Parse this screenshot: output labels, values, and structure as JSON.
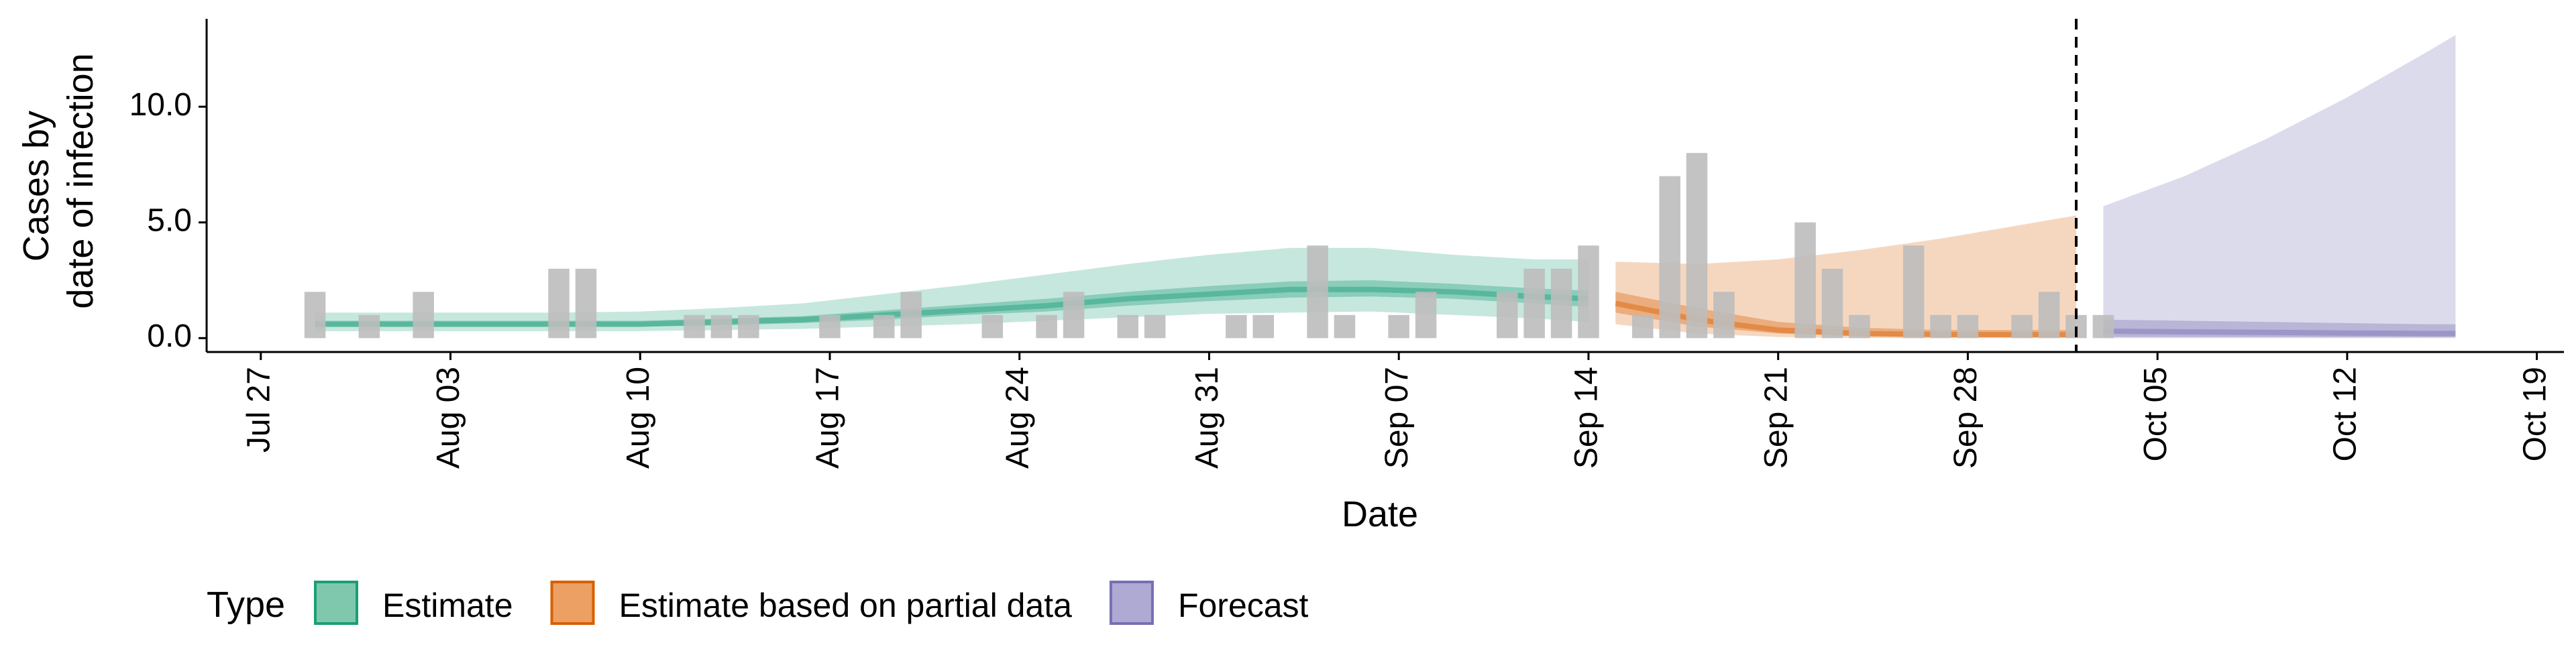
{
  "chart_data": {
    "type": "area",
    "title": "",
    "xlabel": "Date",
    "ylabel": [
      "Cases by",
      "date of infection"
    ],
    "x_tick_labels": [
      "Jul 27",
      "Aug 03",
      "Aug 10",
      "Aug 17",
      "Aug 24",
      "Aug 31",
      "Sep 07",
      "Sep 14",
      "Sep 21",
      "Sep 28",
      "Oct 05",
      "Oct 12",
      "Oct 19"
    ],
    "x_ticks": [
      "2020-07-27",
      "2020-08-03",
      "2020-08-10",
      "2020-08-17",
      "2020-08-24",
      "2020-08-31",
      "2020-09-07",
      "2020-09-14",
      "2020-09-21",
      "2020-09-28",
      "2020-10-05",
      "2020-10-12",
      "2020-10-19"
    ],
    "y_tick_labels": [
      "0.0",
      "5.0",
      "10.0"
    ],
    "y_ticks": [
      0,
      5,
      10
    ],
    "xlim": [
      "2020-07-25",
      "2020-10-20"
    ],
    "ylim": [
      -0.6,
      13.8
    ],
    "forecast_start_marker": "2020-10-02",
    "grid": false,
    "legend": {
      "title": "Type",
      "position": "bottom-left",
      "entries": [
        {
          "label": "Estimate",
          "fill": "#7fc8ad",
          "stroke": "#1b9e77"
        },
        {
          "label": "Estimate based on partial data",
          "fill": "#eca063",
          "stroke": "#d95f02"
        },
        {
          "label": "Forecast",
          "fill": "#aeaad3",
          "stroke": "#7570b3"
        }
      ]
    },
    "colors": {
      "bars": "#bdbdbd",
      "estimate": "#1b9e77",
      "partial": "#d95f02",
      "forecast": "#7570b3"
    },
    "reported_cases": [
      {
        "date": "2020-07-29",
        "value": 2
      },
      {
        "date": "2020-07-31",
        "value": 1
      },
      {
        "date": "2020-08-02",
        "value": 2
      },
      {
        "date": "2020-08-07",
        "value": 3
      },
      {
        "date": "2020-08-08",
        "value": 3
      },
      {
        "date": "2020-08-12",
        "value": 1
      },
      {
        "date": "2020-08-13",
        "value": 1
      },
      {
        "date": "2020-08-14",
        "value": 1
      },
      {
        "date": "2020-08-17",
        "value": 1
      },
      {
        "date": "2020-08-19",
        "value": 1
      },
      {
        "date": "2020-08-20",
        "value": 2
      },
      {
        "date": "2020-08-23",
        "value": 1
      },
      {
        "date": "2020-08-25",
        "value": 1
      },
      {
        "date": "2020-08-26",
        "value": 2
      },
      {
        "date": "2020-08-28",
        "value": 1
      },
      {
        "date": "2020-08-29",
        "value": 1
      },
      {
        "date": "2020-09-01",
        "value": 1
      },
      {
        "date": "2020-09-02",
        "value": 1
      },
      {
        "date": "2020-09-04",
        "value": 4
      },
      {
        "date": "2020-09-05",
        "value": 1
      },
      {
        "date": "2020-09-07",
        "value": 1
      },
      {
        "date": "2020-09-08",
        "value": 2
      },
      {
        "date": "2020-09-11",
        "value": 2
      },
      {
        "date": "2020-09-12",
        "value": 3
      },
      {
        "date": "2020-09-13",
        "value": 3
      },
      {
        "date": "2020-09-14",
        "value": 4
      },
      {
        "date": "2020-09-16",
        "value": 1
      },
      {
        "date": "2020-09-17",
        "value": 7
      },
      {
        "date": "2020-09-18",
        "value": 8
      },
      {
        "date": "2020-09-19",
        "value": 2
      },
      {
        "date": "2020-09-22",
        "value": 5
      },
      {
        "date": "2020-09-23",
        "value": 3
      },
      {
        "date": "2020-09-24",
        "value": 1
      },
      {
        "date": "2020-09-26",
        "value": 4
      },
      {
        "date": "2020-09-27",
        "value": 1
      },
      {
        "date": "2020-09-28",
        "value": 1
      },
      {
        "date": "2020-09-30",
        "value": 1
      },
      {
        "date": "2020-10-01",
        "value": 2
      },
      {
        "date": "2020-10-02",
        "value": 1
      },
      {
        "date": "2020-10-03",
        "value": 1
      }
    ],
    "series": [
      {
        "type": "Estimate",
        "x": [
          "2020-07-29",
          "2020-08-01",
          "2020-08-04",
          "2020-08-07",
          "2020-08-10",
          "2020-08-13",
          "2020-08-16",
          "2020-08-19",
          "2020-08-22",
          "2020-08-25",
          "2020-08-28",
          "2020-08-31",
          "2020-09-03",
          "2020-09-06",
          "2020-09-09",
          "2020-09-12",
          "2020-09-14"
        ],
        "median": [
          0.6,
          0.6,
          0.6,
          0.6,
          0.6,
          0.7,
          0.8,
          1.0,
          1.2,
          1.4,
          1.7,
          1.9,
          2.1,
          2.1,
          2.0,
          1.8,
          1.7
        ],
        "lower_50": [
          0.5,
          0.5,
          0.5,
          0.5,
          0.5,
          0.55,
          0.65,
          0.8,
          1.0,
          1.15,
          1.4,
          1.6,
          1.75,
          1.8,
          1.7,
          1.5,
          1.35
        ],
        "upper_50": [
          0.75,
          0.75,
          0.75,
          0.75,
          0.75,
          0.85,
          0.95,
          1.2,
          1.45,
          1.7,
          2.0,
          2.25,
          2.45,
          2.5,
          2.35,
          2.15,
          2.05
        ],
        "lower_90": [
          0.3,
          0.3,
          0.3,
          0.3,
          0.3,
          0.35,
          0.4,
          0.5,
          0.6,
          0.75,
          0.9,
          1.05,
          1.1,
          1.15,
          1.0,
          0.85,
          0.7
        ],
        "upper_90": [
          1.1,
          1.1,
          1.1,
          1.1,
          1.15,
          1.3,
          1.5,
          1.9,
          2.3,
          2.75,
          3.2,
          3.6,
          3.9,
          3.9,
          3.6,
          3.4,
          3.4
        ]
      },
      {
        "type": "Estimate based on partial data",
        "x": [
          "2020-09-15",
          "2020-09-18",
          "2020-09-21",
          "2020-09-24",
          "2020-09-27",
          "2020-09-30",
          "2020-10-02"
        ],
        "median": [
          1.5,
          0.8,
          0.35,
          0.2,
          0.15,
          0.15,
          0.15
        ],
        "lower_50": [
          1.1,
          0.5,
          0.2,
          0.08,
          0.05,
          0.04,
          0.04
        ],
        "upper_50": [
          2.0,
          1.3,
          0.7,
          0.45,
          0.35,
          0.35,
          0.35
        ],
        "lower_90": [
          0.6,
          0.2,
          0.05,
          0.0,
          0.0,
          0.0,
          0.0
        ],
        "upper_90": [
          3.3,
          3.2,
          3.4,
          3.8,
          4.3,
          4.9,
          5.3
        ]
      },
      {
        "type": "Forecast",
        "x": [
          "2020-10-03",
          "2020-10-06",
          "2020-10-09",
          "2020-10-12",
          "2020-10-15",
          "2020-10-16"
        ],
        "median": [
          0.3,
          0.27,
          0.25,
          0.22,
          0.2,
          0.2
        ],
        "lower_50": [
          0.05,
          0.05,
          0.05,
          0.04,
          0.04,
          0.04
        ],
        "upper_50": [
          0.8,
          0.75,
          0.7,
          0.65,
          0.6,
          0.6
        ],
        "lower_90": [
          0.0,
          0.0,
          0.0,
          0.0,
          0.0,
          0.0
        ],
        "upper_90": [
          5.7,
          7.0,
          8.6,
          10.4,
          12.4,
          13.1
        ]
      }
    ]
  }
}
